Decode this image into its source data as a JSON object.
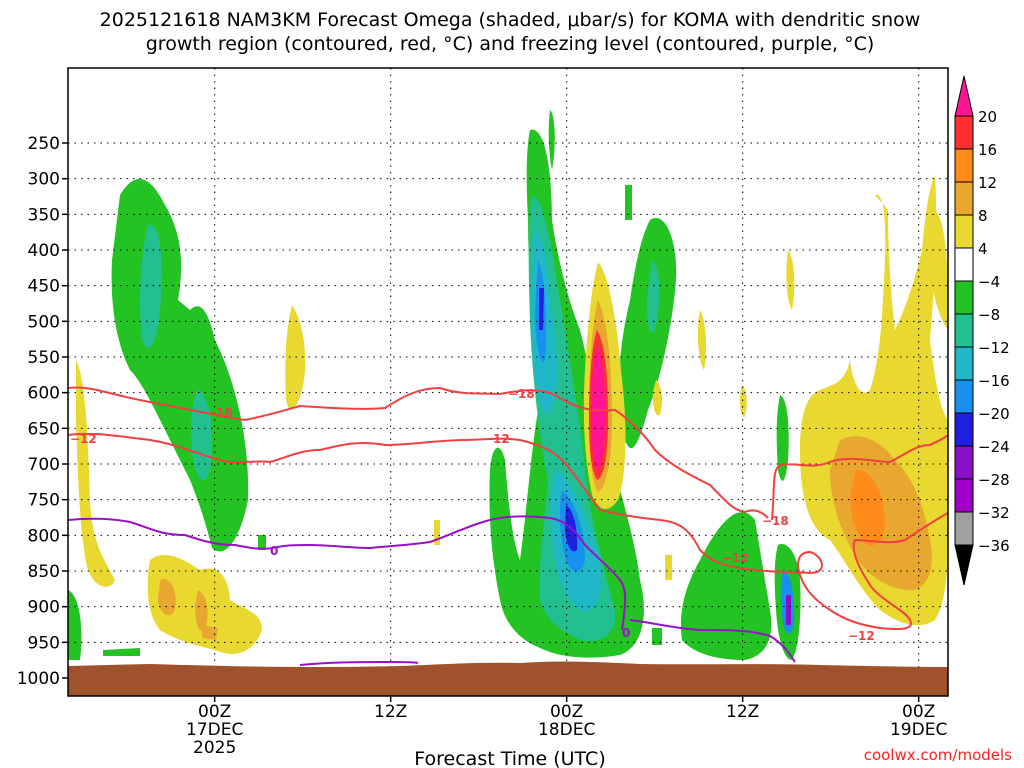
{
  "chart_data": {
    "type": "heatmap",
    "title_line1": "2025121618 NAM3KM Forecast Omega (shaded, μbar/s) for KOMA with dendritic snow",
    "title_line2": "growth region (contoured, red, °C) and freezing level (contoured, purple, °C)",
    "xlabel": "Forecast Time (UTC)",
    "ylabel": "",
    "y_axis": {
      "type": "pressure",
      "unit": "hPa",
      "range": [
        1020,
        180
      ],
      "ticks": [
        250,
        300,
        350,
        400,
        450,
        500,
        550,
        600,
        650,
        700,
        750,
        800,
        850,
        900,
        950,
        1000
      ]
    },
    "x_axis": {
      "range_hours": [
        -10,
        50
      ],
      "ticks": [
        {
          "hour": 0,
          "lines": [
            "00Z",
            "17DEC",
            "2025"
          ]
        },
        {
          "hour": 12,
          "lines": [
            "12Z"
          ]
        },
        {
          "hour": 24,
          "lines": [
            "00Z",
            "18DEC"
          ]
        },
        {
          "hour": 36,
          "lines": [
            "12Z"
          ]
        },
        {
          "hour": 48,
          "lines": [
            "00Z",
            "19DEC"
          ]
        }
      ]
    },
    "colorbar": {
      "labels": [
        "20",
        "16",
        "12",
        "8",
        "4",
        "−4",
        "−8",
        "−12",
        "−16",
        "−20",
        "−24",
        "−28",
        "−32",
        "−36"
      ],
      "colors": [
        "#ff1493",
        "#ff3030",
        "#ff8c1a",
        "#e8a830",
        "#e8d830",
        "#ffffff",
        "#22c322",
        "#22c090",
        "#20b8c8",
        "#1890f0",
        "#2020e0",
        "#8a10c8",
        "#a000c8",
        "#a0a0a0"
      ]
    },
    "contours": {
      "minus18_label": "−18",
      "minus12_label": "−12",
      "freezing_label": "0",
      "minus18_color": "#f04040",
      "freezing_color": "#9a10c8"
    },
    "terrain_color": "#a0522d"
  },
  "credit": "coolwx.com/models"
}
